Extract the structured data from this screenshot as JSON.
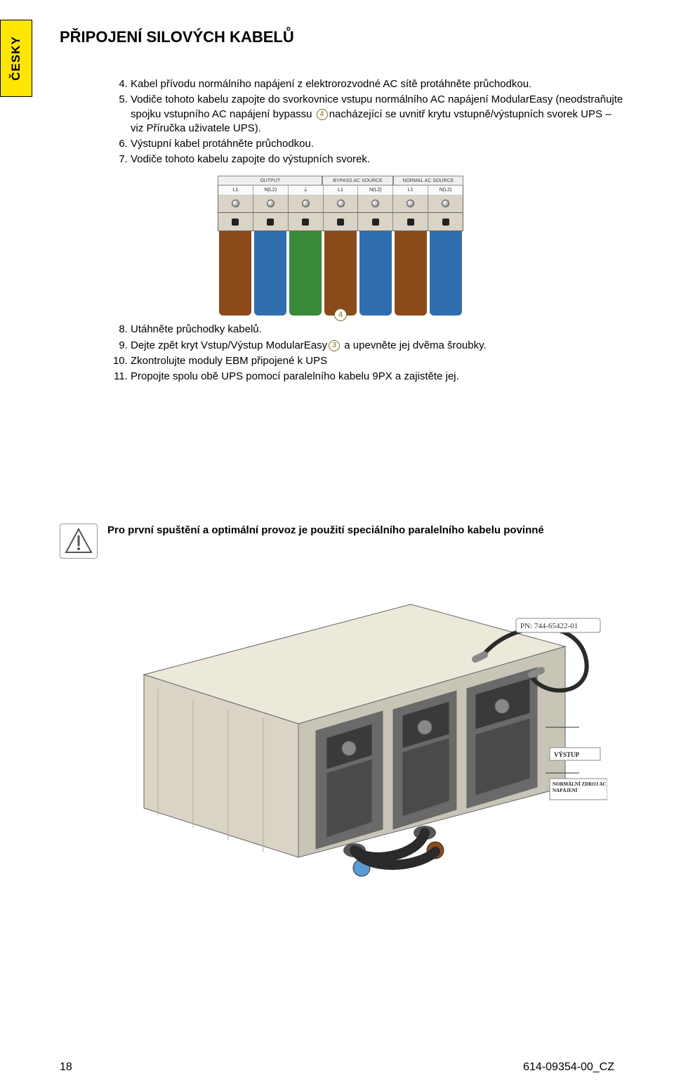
{
  "lang_tab": "ČESKY",
  "section_title": "PŘIPOJENÍ SILOVÝCH KABELŮ",
  "steps_first": {
    "start": 4,
    "items": [
      "Kabel přívodu normálního napájení z elektrorozvodné AC sítě protáhněte průchodkou.",
      {
        "pre": "Vodiče tohoto kabelu zapojte do svorkovnice vstupu normálního AC napájení ModularEasy (neodstraňujte spojku vstupního AC napájení bypassu ",
        "ref": "4",
        "post": "nacházející se uvnitř krytu vstupně/výstupních svorek UPS – viz Příručka uživatele UPS)."
      },
      "Výstupní kabel protáhněte průchodkou.",
      "Vodiče tohoto kabelu zapojte do výstupních svorek."
    ]
  },
  "steps_second": {
    "start": 8,
    "items": [
      "Utáhněte průchodky kabelů.",
      {
        "pre": "Dejte zpět kryt Vstup/Výstup ModularEasy",
        "ref": "3",
        "post": " a upevněte jej dvěma šroubky."
      },
      "Zkontrolujte moduly EBM připojené k UPS",
      "Propojte spolu obě UPS pomocí paralelního kabelu 9PX a zajistěte jej."
    ]
  },
  "notice_text": "Pro první spuštění a optimální provoz je použití speciálního paralelního kabelu povinné",
  "terminal": {
    "sections": [
      "OUTPUT",
      "BYPASS AC SOURCE",
      "NORMAL AC SOURCE"
    ],
    "labels": [
      "L1",
      "N(L2)",
      "⏚",
      "L1",
      "N(L2)",
      "L1",
      "N(L2)"
    ],
    "callout": "4",
    "wire_colors": [
      "#8a4a1a",
      "#2f6fb0",
      "#3a8a3a",
      "#8a4a1a",
      "#2f6fb0",
      "#8a4a1a",
      "#2f6fb0"
    ]
  },
  "ups_labels": {
    "pn": "PN: 744-65422-01",
    "out": "VÝSTUP",
    "in": "NORMÁLNÍ ZDROJ AC NAPÁJENÍ"
  },
  "colors": {
    "tab_bg": "#ffe600",
    "brown": "#8a4a1a",
    "blue": "#2f6fb0",
    "green": "#3a8a3a",
    "chassis": "#e8e4d8",
    "chassis_dark": "#b8b4a8",
    "cable": "#2a2a2a"
  },
  "footer": {
    "page_num": "18",
    "doc_id": "614-09354-00_CZ"
  }
}
